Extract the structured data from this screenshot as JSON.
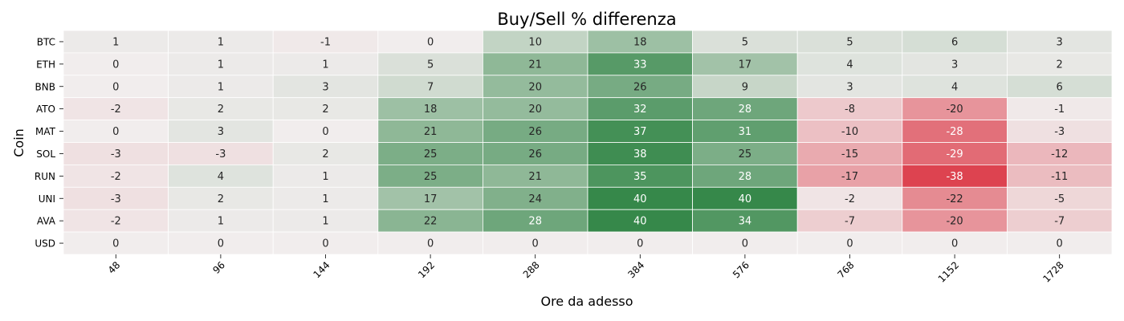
{
  "chart_data": {
    "type": "heatmap",
    "title": "Buy/Sell % differenza",
    "xlabel": "Ore da adesso",
    "ylabel": "Coin",
    "x_categories": [
      "48",
      "96",
      "144",
      "192",
      "288",
      "384",
      "576",
      "768",
      "1152",
      "1728"
    ],
    "y_categories": [
      "BTC",
      "ETH",
      "BNB",
      "ATO",
      "MAT",
      "SOL",
      "RUN",
      "UNI",
      "AVA",
      "USD"
    ],
    "values": [
      [
        1,
        1,
        -1,
        0,
        10,
        18,
        5,
        5,
        6,
        3
      ],
      [
        0,
        1,
        1,
        5,
        21,
        33,
        17,
        4,
        3,
        2
      ],
      [
        0,
        1,
        3,
        7,
        20,
        26,
        9,
        3,
        4,
        6
      ],
      [
        -2,
        2,
        2,
        18,
        20,
        32,
        28,
        -8,
        -20,
        -1
      ],
      [
        0,
        3,
        0,
        21,
        26,
        37,
        31,
        -10,
        -28,
        -3
      ],
      [
        -3,
        -3,
        2,
        25,
        26,
        38,
        25,
        -15,
        -29,
        -12
      ],
      [
        -2,
        4,
        1,
        25,
        21,
        35,
        28,
        -17,
        -38,
        -11
      ],
      [
        -3,
        2,
        1,
        17,
        24,
        40,
        40,
        -2,
        -22,
        -5
      ],
      [
        -2,
        1,
        1,
        22,
        28,
        40,
        34,
        -7,
        -20,
        -7
      ],
      [
        0,
        0,
        0,
        0,
        0,
        0,
        0,
        0,
        0,
        0
      ]
    ],
    "vmin": -40,
    "vmax": 40,
    "colormap": {
      "negative": "#dc3a48",
      "neutral": "#f1eded",
      "positive": "#36884a"
    },
    "colorbar": false,
    "grid": false
  }
}
